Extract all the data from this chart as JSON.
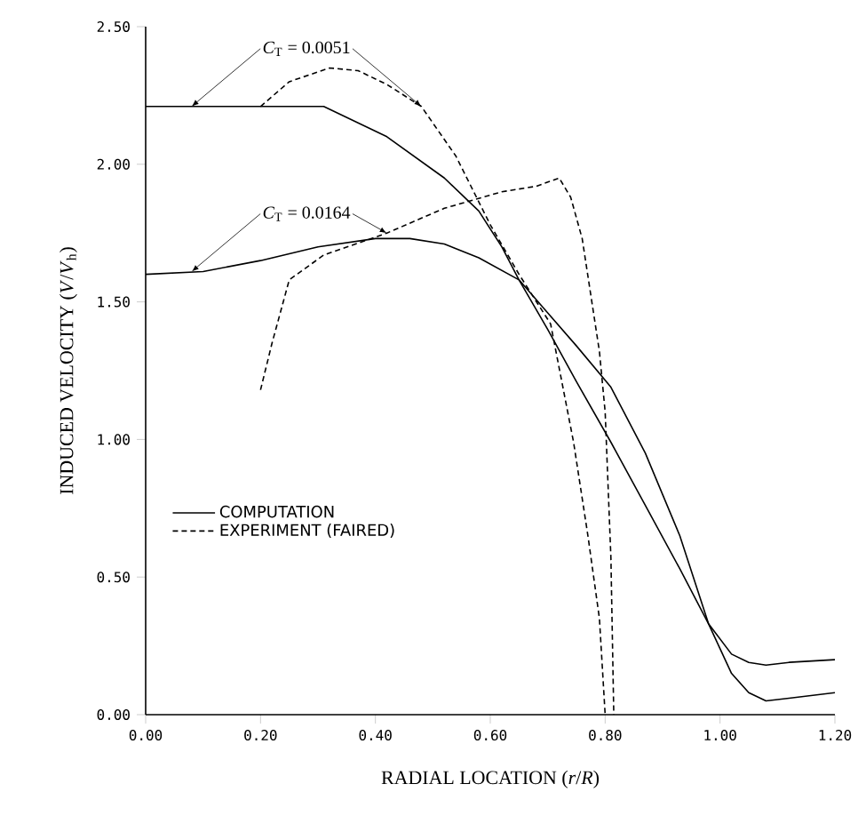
{
  "chart_data": {
    "type": "line",
    "xlabel": "RADIAL LOCATION (*r*/*R*)",
    "ylabel": "INDUCED VELOCITY (*V*/*V*$_{h}$)",
    "xlim": [
      0,
      1.2
    ],
    "ylim": [
      0,
      2.5
    ],
    "xticks": [
      {
        "value": 0,
        "label": "0.00"
      },
      {
        "value": 0.2,
        "label": "0.20"
      },
      {
        "value": 0.4,
        "label": "0.40"
      },
      {
        "value": 0.6,
        "label": "0.60"
      },
      {
        "value": 0.8,
        "label": "0.80"
      },
      {
        "value": 1.0,
        "label": "1.00"
      },
      {
        "value": 1.2,
        "label": "1.20"
      }
    ],
    "yticks": [
      {
        "value": 0,
        "label": "0.00"
      },
      {
        "value": 0.5,
        "label": "0.50"
      },
      {
        "value": 1.0,
        "label": "1.00"
      },
      {
        "value": 1.5,
        "label": "1.50"
      },
      {
        "value": 2.0,
        "label": "2.00"
      },
      {
        "value": 2.5,
        "label": "2.50"
      }
    ],
    "grid": false,
    "legend": "left",
    "marker": "none",
    "annotations": [
      {
        "text": "*C*$_{T}$ = 0.0051",
        "x": 0.08,
        "y": 2.21
      },
      {
        "text": "*C*$_{T}$ = 0.0164",
        "x": 0.08,
        "y": 1.61
      }
    ],
    "series": [
      {
        "name": "COMPUTATION",
        "color": "#000000",
        "line_style": "solid",
        "x": [
          0,
          0.1,
          0.2,
          0.31,
          0.42,
          0.52,
          0.58,
          0.62,
          0.65,
          0.7,
          0.75,
          0.81,
          0.87,
          0.93,
          0.98,
          1.02,
          1.05,
          1.08,
          1.12,
          1.2
        ],
        "values": [
          2.21,
          2.21,
          2.21,
          2.21,
          2.1,
          1.95,
          1.83,
          1.7,
          1.58,
          1.4,
          1.21,
          0.99,
          0.76,
          0.53,
          0.33,
          0.22,
          0.19,
          0.18,
          0.19,
          0.2
        ]
      },
      {
        "color": "#000000",
        "line_style": "solid",
        "x": [
          0,
          0.1,
          0.2,
          0.3,
          0.4,
          0.46,
          0.52,
          0.58,
          0.65,
          0.7,
          0.75,
          0.81,
          0.87,
          0.93,
          0.98,
          1.02,
          1.05,
          1.08,
          1.12,
          1.2
        ],
        "values": [
          1.6,
          1.61,
          1.65,
          1.7,
          1.73,
          1.73,
          1.71,
          1.66,
          1.58,
          1.46,
          1.34,
          1.19,
          0.95,
          0.65,
          0.33,
          0.15,
          0.08,
          0.05,
          0.06,
          0.08
        ]
      },
      {
        "name": "EXPERIMENT (FAIRED)",
        "color": "#000000",
        "line_style": "dashed",
        "x": [
          0.2,
          0.25,
          0.32,
          0.37,
          0.42,
          0.48,
          0.54,
          0.6,
          0.65,
          0.705,
          0.745,
          0.77,
          0.79,
          0.8
        ],
        "values": [
          2.21,
          2.3,
          2.35,
          2.34,
          2.29,
          2.21,
          2.03,
          1.78,
          1.6,
          1.42,
          0.99,
          0.65,
          0.35,
          0
        ]
      },
      {
        "color": "#000000",
        "line_style": "dashed",
        "x": [
          0.2,
          0.22,
          0.25,
          0.31,
          0.42,
          0.52,
          0.62,
          0.68,
          0.72,
          0.74,
          0.76,
          0.79,
          0.8,
          0.81,
          0.815
        ],
        "values": [
          1.18,
          1.35,
          1.58,
          1.67,
          1.75,
          1.84,
          1.9,
          1.92,
          1.95,
          1.88,
          1.73,
          1.32,
          1.1,
          0.57,
          0
        ]
      }
    ]
  }
}
